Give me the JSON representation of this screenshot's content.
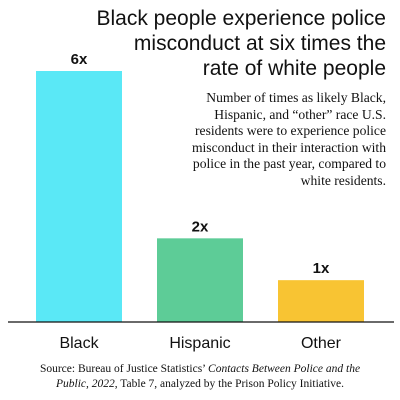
{
  "header": {
    "title_line1": "Black people experience police",
    "title_line2": "misconduct at six times the",
    "title_line3": "rate of white people"
  },
  "note": {
    "line1": "Number of times as likely Black,",
    "line2": "Hispanic, and “other” race U.S.",
    "line3": "residents were to experience police",
    "line4": "misconduct in their interaction with",
    "line5": "police in the past year, compared to",
    "line6": "white residents."
  },
  "footer": {
    "source_line1_a": "Source: Bureau of Justice Statistics’ ",
    "source_line1_b": "Contacts Between Police and the",
    "source_line2_a": "Public, 2022",
    "source_line2_b": ", Table 7, analyzed by the Prison Policy Initiative."
  },
  "chart_data": {
    "type": "bar",
    "categories": [
      "Black",
      "Hispanic",
      "Other"
    ],
    "values": [
      6,
      2,
      1
    ],
    "data_labels": [
      "6x",
      "2x",
      "1x"
    ],
    "colors": [
      "#5ae8f6",
      "#5dcc97",
      "#f8c433"
    ],
    "ylim": [
      0,
      6
    ],
    "grid": false
  }
}
